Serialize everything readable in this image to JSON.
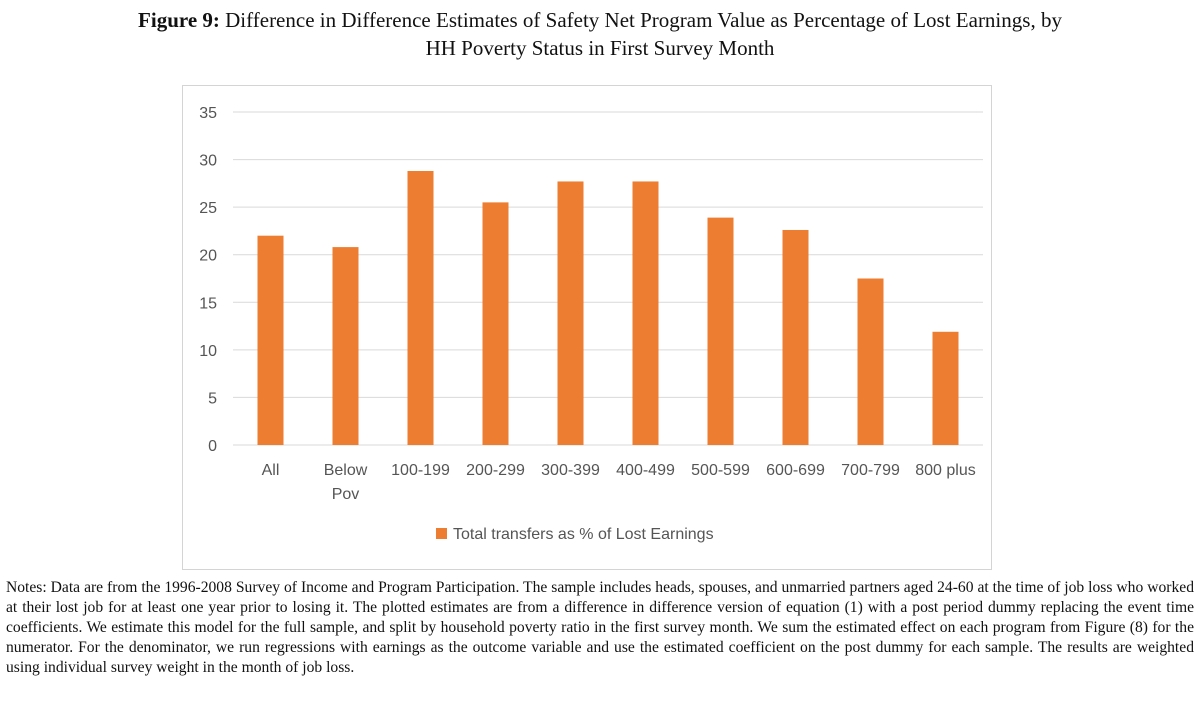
{
  "caption": {
    "label": "Figure 9:",
    "line1": "Difference in Difference Estimates of Safety Net Program Value as Percentage of Lost Earnings, by",
    "line2": "HH Poverty Status in First Survey Month"
  },
  "chart_data": {
    "type": "bar",
    "categories": [
      [
        "All"
      ],
      [
        "Below",
        "Pov"
      ],
      [
        "100-199"
      ],
      [
        "200-299"
      ],
      [
        "300-399"
      ],
      [
        "400-499"
      ],
      [
        "500-599"
      ],
      [
        "600-699"
      ],
      [
        "700-799"
      ],
      [
        "800 plus"
      ]
    ],
    "series": [
      {
        "name": "Total transfers as % of Lost Earnings",
        "values": [
          22.0,
          20.8,
          28.8,
          25.5,
          27.7,
          27.7,
          23.9,
          22.6,
          17.5,
          11.9
        ],
        "color": "#ED7D31"
      }
    ],
    "ylim": [
      0,
      35
    ],
    "yticks": [
      0,
      5,
      10,
      15,
      20,
      25,
      30,
      35
    ],
    "grid": true,
    "legend_position": "bottom",
    "xlabel": "",
    "ylabel": ""
  },
  "notes": "Notes: Data are from the 1996-2008 Survey of Income and Program Participation. The sample includes heads, spouses, and unmarried partners aged 24-60 at the time of job loss who worked at their lost job for at least one year prior to losing it. The plotted estimates are from a difference in difference version of equation (1) with a post period dummy replacing the event time coefficients. We estimate this model for the full sample, and split by household poverty ratio in the first survey month. We sum the estimated effect on each program from Figure (8) for the numerator. For the denominator, we run regressions with earnings as the outcome variable and use the estimated coefficient on the post dummy for each sample. The results are weighted using individual survey weight in the month of job loss."
}
